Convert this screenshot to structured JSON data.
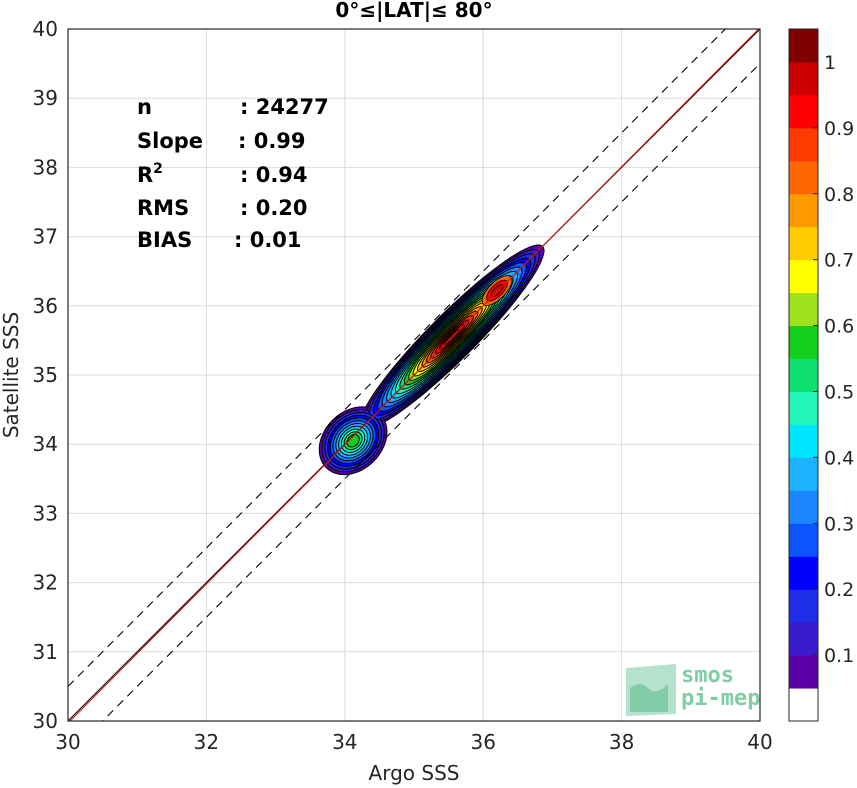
{
  "chart_data": {
    "type": "contour",
    "title": "0°≤|LAT|≤ 80°",
    "xlabel": "Argo SSS",
    "ylabel": "Satellite SSS",
    "xlim": [
      30,
      40
    ],
    "ylim": [
      30,
      40
    ],
    "x_ticks": [
      "30",
      "32",
      "34",
      "36",
      "38",
      "40"
    ],
    "y_ticks": [
      "30",
      "31",
      "32",
      "33",
      "34",
      "35",
      "36",
      "37",
      "38",
      "39",
      "40"
    ],
    "grid": true,
    "stats": [
      {
        "label": "n",
        "value": ": 24277"
      },
      {
        "label": "Slope",
        "value": ": 0.99"
      },
      {
        "label": "R",
        "sup": "2",
        "value": ": 0.94"
      },
      {
        "label": "RMS",
        "value": ": 0.20"
      },
      {
        "label": "BIAS",
        "value": ": 0.01"
      }
    ],
    "reference_lines": [
      {
        "kind": "one-to-one",
        "style": "solid",
        "color": "#000000"
      },
      {
        "kind": "regression",
        "style": "solid",
        "color": "#e0201b"
      },
      {
        "kind": "offset-plus",
        "offset": 0.5,
        "style": "dashed",
        "color": "#000000"
      },
      {
        "kind": "offset-minus",
        "offset": -0.5,
        "style": "dashed",
        "color": "#000000"
      }
    ],
    "density_peaks": [
      {
        "x": 35.6,
        "y": 35.6,
        "level": 1.0
      },
      {
        "x": 36.2,
        "y": 36.2,
        "level": 0.8
      },
      {
        "x": 34.05,
        "y": 34.1,
        "level": 0.55
      }
    ],
    "colorbar": {
      "ticks": [
        "0.1",
        "0.2",
        "0.3",
        "0.4",
        "0.5",
        "0.6",
        "0.7",
        "0.8",
        "0.9",
        "1"
      ],
      "colors": [
        "#ffffff",
        "#5a00a8",
        "#3a1acd",
        "#1d2ee6",
        "#0000ff",
        "#0a55ff",
        "#1a86ff",
        "#1cb2ff",
        "#00e5ff",
        "#22f5b8",
        "#10e070",
        "#12cf1c",
        "#9de21c",
        "#ffff00",
        "#ffcc00",
        "#ff9900",
        "#ff6600",
        "#ff3a00",
        "#ff0000",
        "#cc0000",
        "#800000"
      ]
    }
  },
  "watermark": {
    "line1": "smos",
    "line2": "pi-mep"
  }
}
